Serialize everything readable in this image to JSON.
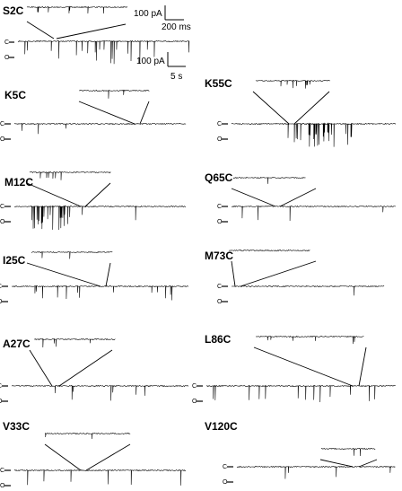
{
  "figure": {
    "scale_bars": {
      "inset_current": "100 pA",
      "inset_time": "200 ms",
      "main_current": "100 pA",
      "main_time": "5 s"
    },
    "state_markers": {
      "closed": "C",
      "open": "O"
    },
    "panels": [
      {
        "id": "S2C",
        "label": "S2C",
        "activity": "bursts of openings, frequent events",
        "density": 0.85,
        "amplitude": 1.0
      },
      {
        "id": "K5C",
        "label": "K5C",
        "activity": "rare brief openings",
        "density": 0.15,
        "amplitude": 0.45
      },
      {
        "id": "K55C",
        "label": "K55C",
        "activity": "clustered long openings late in record",
        "density": 0.6,
        "amplitude": 1.0
      },
      {
        "id": "M12C",
        "label": "M12C",
        "activity": "burst cluster early in record",
        "density": 0.35,
        "amplitude": 1.0
      },
      {
        "id": "Q65C",
        "label": "Q65C",
        "activity": "scattered openings",
        "density": 0.45,
        "amplitude": 0.7
      },
      {
        "id": "I25C",
        "label": "I25C",
        "activity": "scattered openings",
        "density": 0.35,
        "amplitude": 0.6
      },
      {
        "id": "M73C",
        "label": "M73C",
        "activity": "very rare openings",
        "density": 0.05,
        "amplitude": 0.5
      },
      {
        "id": "A27C",
        "label": "A27C",
        "activity": "scattered openings",
        "density": 0.45,
        "amplitude": 0.65
      },
      {
        "id": "L86C",
        "label": "L86C",
        "activity": "frequent openings across record",
        "density": 0.55,
        "amplitude": 0.7
      },
      {
        "id": "V33C",
        "label": "V33C",
        "activity": "scattered openings",
        "density": 0.35,
        "amplitude": 0.65
      },
      {
        "id": "V120C",
        "label": "V120C",
        "activity": "sparse openings",
        "density": 0.2,
        "amplitude": 0.65
      }
    ]
  }
}
